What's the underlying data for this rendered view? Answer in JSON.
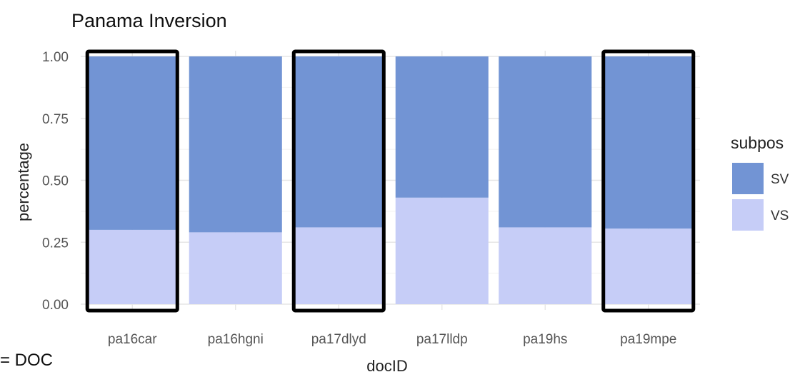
{
  "chart_data": {
    "type": "bar",
    "stacked": true,
    "title": "Panama Inversion",
    "xlabel": "docID",
    "ylabel": "percentage",
    "categories": [
      "pa16car",
      "pa16hgni",
      "pa17dlyd",
      "pa17lldp",
      "pa19hs",
      "pa19mpe"
    ],
    "ylim": [
      0,
      1
    ],
    "yticks": [
      "0.00",
      "0.25",
      "0.50",
      "0.75",
      "1.00"
    ],
    "grid": true,
    "series": [
      {
        "name": "VS",
        "values": [
          0.3,
          0.29,
          0.31,
          0.43,
          0.31,
          0.305
        ],
        "color": "#c6cdf7"
      },
      {
        "name": "SV",
        "values": [
          0.7,
          0.71,
          0.69,
          0.57,
          0.69,
          0.695
        ],
        "color": "#7294d4"
      }
    ],
    "legend": {
      "title": "subpos",
      "position": "right",
      "entries": [
        "SV",
        "VS"
      ]
    },
    "highlighted_categories": [
      "pa16car",
      "pa17dlyd",
      "pa19mpe"
    ]
  },
  "footnote": "= DOC"
}
